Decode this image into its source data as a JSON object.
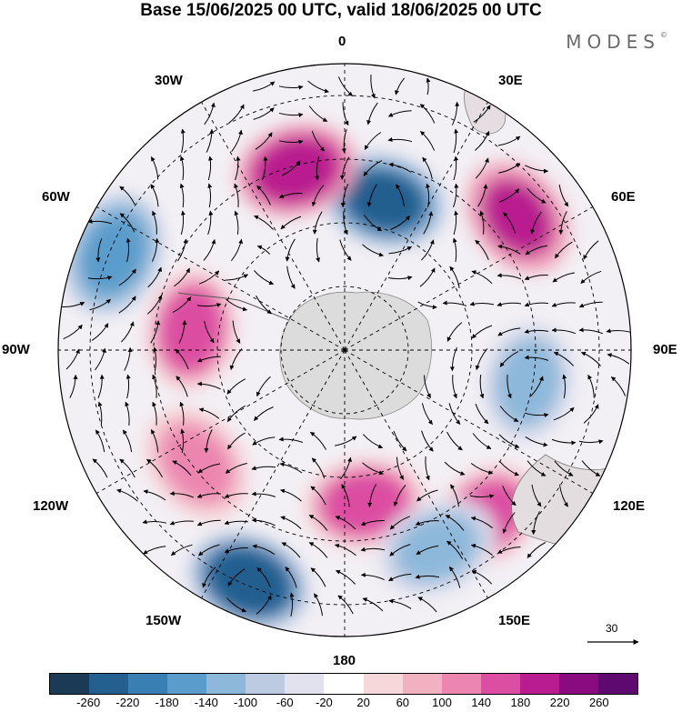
{
  "title": "Base 15/06/2025 00 UTC, valid 18/06/2025 00 UTC",
  "brand": "MODES",
  "brand_mark": "©",
  "longitude_labels": {
    "top": "0",
    "top_right": "30E",
    "right_upper": "60E",
    "right": "90E",
    "right_lower": "120E",
    "bottom_right": "150E",
    "bottom": "180",
    "bottom_left": "150W",
    "left_lower": "120W",
    "left": "90W",
    "left_upper": "60W",
    "top_left": "30W"
  },
  "reference_vector": {
    "label": "30"
  },
  "colorbar": {
    "colors": [
      "#1b3a56",
      "#235f8f",
      "#3a7fb3",
      "#5a9ccb",
      "#8db8da",
      "#bccbe2",
      "#e2e2ef",
      "#ffffff",
      "#f6d7da",
      "#f1b1c1",
      "#ec86b1",
      "#dc4ea2",
      "#b81c8e",
      "#8a0b80",
      "#5d0970"
    ],
    "ticks": [
      "-260",
      "-220",
      "-180",
      "-140",
      "-100",
      "-60",
      "-20",
      "20",
      "60",
      "100",
      "140",
      "180",
      "220",
      "260"
    ]
  },
  "anomaly_centers": [
    {
      "sign": "negative",
      "value": -240,
      "sector": "0-30E"
    },
    {
      "sign": "positive",
      "value": 200,
      "sector": "0-30W"
    },
    {
      "sign": "positive",
      "value": 190,
      "sector": "45E-60E"
    },
    {
      "sign": "negative",
      "value": -180,
      "sector": "60W-75W"
    },
    {
      "sign": "positive",
      "value": 150,
      "sector": "75W-90W"
    },
    {
      "sign": "negative",
      "value": -140,
      "sector": "90E-110E"
    },
    {
      "sign": "positive",
      "value": 150,
      "sector": "130E-150E"
    },
    {
      "sign": "negative",
      "value": -260,
      "sector": "150W-165W"
    },
    {
      "sign": "positive",
      "value": 170,
      "sector": "165E-180"
    },
    {
      "sign": "positive",
      "value": 130,
      "sector": "120W-135W"
    },
    {
      "sign": "negative",
      "value": -130,
      "sector": "150E-160E"
    }
  ]
}
